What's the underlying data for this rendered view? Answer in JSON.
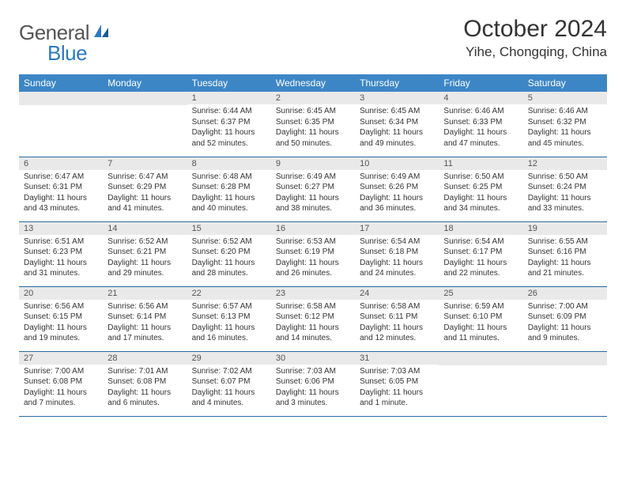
{
  "brand": {
    "part1": "General",
    "part2": "Blue"
  },
  "title": "October 2024",
  "location": "Yihe, Chongqing, China",
  "colors": {
    "header_bg": "#3d86c6",
    "header_text": "#ffffff",
    "daynum_bg": "#e9e9e9",
    "daynum_text": "#555555",
    "body_text": "#333333",
    "rule": "#2b6aa0",
    "logo_gray": "#555555",
    "logo_blue": "#2b78c2",
    "page_bg": "#ffffff"
  },
  "typography": {
    "title_fontsize": 30,
    "location_fontsize": 17,
    "weekday_fontsize": 12,
    "daynum_fontsize": 11,
    "body_fontsize": 10,
    "logo_fontsize": 26
  },
  "weekdays": [
    "Sunday",
    "Monday",
    "Tuesday",
    "Wednesday",
    "Thursday",
    "Friday",
    "Saturday"
  ],
  "weeks": [
    [
      null,
      null,
      {
        "n": "1",
        "sr": "Sunrise: 6:44 AM",
        "ss": "Sunset: 6:37 PM",
        "dl": "Daylight: 11 hours and 52 minutes."
      },
      {
        "n": "2",
        "sr": "Sunrise: 6:45 AM",
        "ss": "Sunset: 6:35 PM",
        "dl": "Daylight: 11 hours and 50 minutes."
      },
      {
        "n": "3",
        "sr": "Sunrise: 6:45 AM",
        "ss": "Sunset: 6:34 PM",
        "dl": "Daylight: 11 hours and 49 minutes."
      },
      {
        "n": "4",
        "sr": "Sunrise: 6:46 AM",
        "ss": "Sunset: 6:33 PM",
        "dl": "Daylight: 11 hours and 47 minutes."
      },
      {
        "n": "5",
        "sr": "Sunrise: 6:46 AM",
        "ss": "Sunset: 6:32 PM",
        "dl": "Daylight: 11 hours and 45 minutes."
      }
    ],
    [
      {
        "n": "6",
        "sr": "Sunrise: 6:47 AM",
        "ss": "Sunset: 6:31 PM",
        "dl": "Daylight: 11 hours and 43 minutes."
      },
      {
        "n": "7",
        "sr": "Sunrise: 6:47 AM",
        "ss": "Sunset: 6:29 PM",
        "dl": "Daylight: 11 hours and 41 minutes."
      },
      {
        "n": "8",
        "sr": "Sunrise: 6:48 AM",
        "ss": "Sunset: 6:28 PM",
        "dl": "Daylight: 11 hours and 40 minutes."
      },
      {
        "n": "9",
        "sr": "Sunrise: 6:49 AM",
        "ss": "Sunset: 6:27 PM",
        "dl": "Daylight: 11 hours and 38 minutes."
      },
      {
        "n": "10",
        "sr": "Sunrise: 6:49 AM",
        "ss": "Sunset: 6:26 PM",
        "dl": "Daylight: 11 hours and 36 minutes."
      },
      {
        "n": "11",
        "sr": "Sunrise: 6:50 AM",
        "ss": "Sunset: 6:25 PM",
        "dl": "Daylight: 11 hours and 34 minutes."
      },
      {
        "n": "12",
        "sr": "Sunrise: 6:50 AM",
        "ss": "Sunset: 6:24 PM",
        "dl": "Daylight: 11 hours and 33 minutes."
      }
    ],
    [
      {
        "n": "13",
        "sr": "Sunrise: 6:51 AM",
        "ss": "Sunset: 6:23 PM",
        "dl": "Daylight: 11 hours and 31 minutes."
      },
      {
        "n": "14",
        "sr": "Sunrise: 6:52 AM",
        "ss": "Sunset: 6:21 PM",
        "dl": "Daylight: 11 hours and 29 minutes."
      },
      {
        "n": "15",
        "sr": "Sunrise: 6:52 AM",
        "ss": "Sunset: 6:20 PM",
        "dl": "Daylight: 11 hours and 28 minutes."
      },
      {
        "n": "16",
        "sr": "Sunrise: 6:53 AM",
        "ss": "Sunset: 6:19 PM",
        "dl": "Daylight: 11 hours and 26 minutes."
      },
      {
        "n": "17",
        "sr": "Sunrise: 6:54 AM",
        "ss": "Sunset: 6:18 PM",
        "dl": "Daylight: 11 hours and 24 minutes."
      },
      {
        "n": "18",
        "sr": "Sunrise: 6:54 AM",
        "ss": "Sunset: 6:17 PM",
        "dl": "Daylight: 11 hours and 22 minutes."
      },
      {
        "n": "19",
        "sr": "Sunrise: 6:55 AM",
        "ss": "Sunset: 6:16 PM",
        "dl": "Daylight: 11 hours and 21 minutes."
      }
    ],
    [
      {
        "n": "20",
        "sr": "Sunrise: 6:56 AM",
        "ss": "Sunset: 6:15 PM",
        "dl": "Daylight: 11 hours and 19 minutes."
      },
      {
        "n": "21",
        "sr": "Sunrise: 6:56 AM",
        "ss": "Sunset: 6:14 PM",
        "dl": "Daylight: 11 hours and 17 minutes."
      },
      {
        "n": "22",
        "sr": "Sunrise: 6:57 AM",
        "ss": "Sunset: 6:13 PM",
        "dl": "Daylight: 11 hours and 16 minutes."
      },
      {
        "n": "23",
        "sr": "Sunrise: 6:58 AM",
        "ss": "Sunset: 6:12 PM",
        "dl": "Daylight: 11 hours and 14 minutes."
      },
      {
        "n": "24",
        "sr": "Sunrise: 6:58 AM",
        "ss": "Sunset: 6:11 PM",
        "dl": "Daylight: 11 hours and 12 minutes."
      },
      {
        "n": "25",
        "sr": "Sunrise: 6:59 AM",
        "ss": "Sunset: 6:10 PM",
        "dl": "Daylight: 11 hours and 11 minutes."
      },
      {
        "n": "26",
        "sr": "Sunrise: 7:00 AM",
        "ss": "Sunset: 6:09 PM",
        "dl": "Daylight: 11 hours and 9 minutes."
      }
    ],
    [
      {
        "n": "27",
        "sr": "Sunrise: 7:00 AM",
        "ss": "Sunset: 6:08 PM",
        "dl": "Daylight: 11 hours and 7 minutes."
      },
      {
        "n": "28",
        "sr": "Sunrise: 7:01 AM",
        "ss": "Sunset: 6:08 PM",
        "dl": "Daylight: 11 hours and 6 minutes."
      },
      {
        "n": "29",
        "sr": "Sunrise: 7:02 AM",
        "ss": "Sunset: 6:07 PM",
        "dl": "Daylight: 11 hours and 4 minutes."
      },
      {
        "n": "30",
        "sr": "Sunrise: 7:03 AM",
        "ss": "Sunset: 6:06 PM",
        "dl": "Daylight: 11 hours and 3 minutes."
      },
      {
        "n": "31",
        "sr": "Sunrise: 7:03 AM",
        "ss": "Sunset: 6:05 PM",
        "dl": "Daylight: 11 hours and 1 minute."
      },
      null,
      null
    ]
  ]
}
